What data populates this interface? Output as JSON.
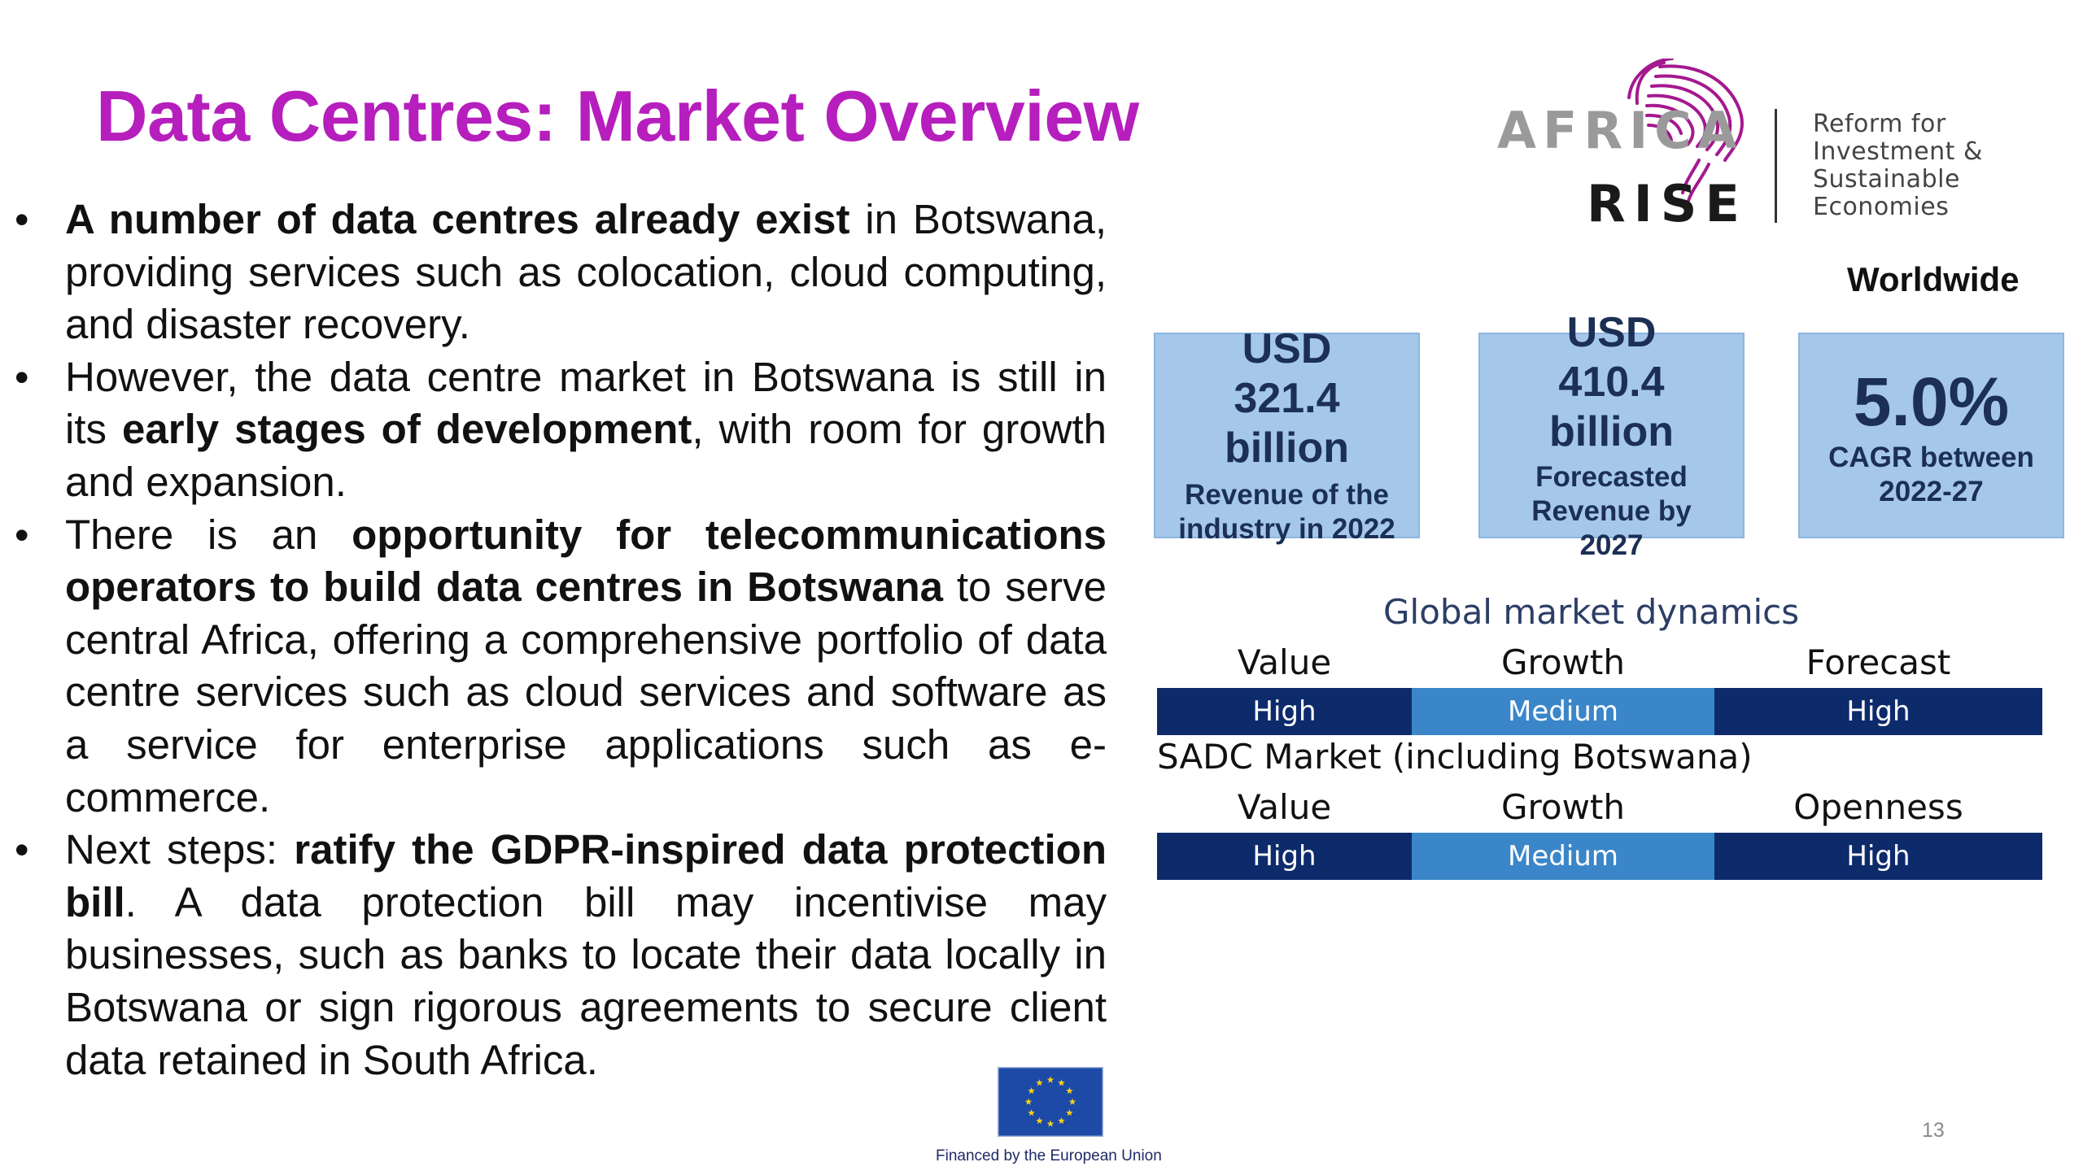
{
  "slide": {
    "title": "Data Centres: Market Overview",
    "page_number": "13"
  },
  "bullets": [
    [
      {
        "t": "A number of data centres already exist",
        "b": true
      },
      {
        "t": " in Botswana, providing services such as colocation, cloud computing, and disaster recovery.",
        "b": false
      }
    ],
    [
      {
        "t": "However, the data centre market in Botswana is still in its ",
        "b": false
      },
      {
        "t": "early stages of development",
        "b": true
      },
      {
        "t": ", with room for growth and expansion.",
        "b": false
      }
    ],
    [
      {
        "t": "There is an ",
        "b": false
      },
      {
        "t": "opportunity for telecommunications operators to build data centres in Botswana",
        "b": true
      },
      {
        "t": " to serve central Africa, offering a comprehensive portfolio of data centre services such as cloud services and software as a service for enterprise applications such as e-commerce.",
        "b": false
      }
    ],
    [
      {
        "t": "Next steps: ",
        "b": false
      },
      {
        "t": "ratify the GDPR-inspired data protection bill",
        "b": true
      },
      {
        "t": ". A data protection bill may incentivise may businesses, such as banks to locate their data locally in Botswana or sign rigorous agreements to secure client data retained in South Africa.",
        "b": false
      }
    ]
  ],
  "logo": {
    "word1": "AFRICA",
    "word2": "RISE",
    "tagline": "Reform for\nInvestment &\nSustainable\nEconomies",
    "icon": "fingerprint-africa-icon"
  },
  "worldwide": {
    "heading": "Worldwide",
    "stats": [
      {
        "value": "USD 321.4 billion",
        "caption": "Revenue of the industry in 2022"
      },
      {
        "value": "USD 410.4 billion",
        "caption": "Forecasted Revenue by 2027"
      },
      {
        "value": "5.0%",
        "caption": "CAGR between 2022-27"
      }
    ]
  },
  "global_dynamics": {
    "title": "Global market dynamics",
    "headers": [
      "Value",
      "Growth",
      "Forecast"
    ],
    "ratings": [
      "High",
      "Medium",
      "High"
    ]
  },
  "sadc": {
    "title": "SADC Market (including Botswana)",
    "headers": [
      "Value",
      "Growth",
      "Openness"
    ],
    "ratings": [
      "High",
      "Medium",
      "High"
    ]
  },
  "eu": {
    "caption": "Financed by the European Union",
    "icon": "eu-flag-icon"
  },
  "colors": {
    "title": "#b61ebd",
    "stat_box": "#a5c8ea",
    "stat_text": "#1c2f55",
    "dark_navy": "#0d2a6b",
    "mid_blue": "#3a86c8",
    "logo_magenta": "#a4198f",
    "logo_gray": "#9a9a9a"
  }
}
